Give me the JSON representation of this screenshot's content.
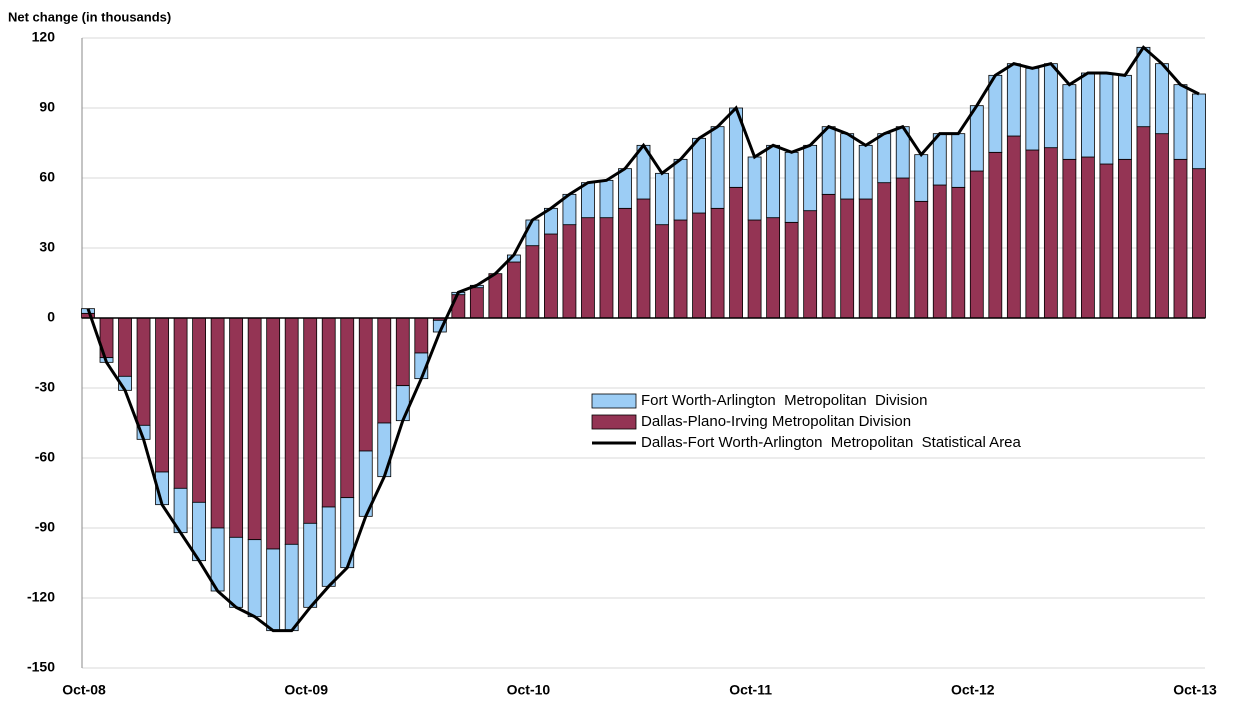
{
  "chart_data": {
    "type": "bar",
    "stacked": true,
    "y_label": "Net change (in thousands)",
    "categories": [
      "Oct-08",
      null,
      null,
      null,
      null,
      null,
      null,
      null,
      null,
      null,
      null,
      null,
      "Oct-09",
      null,
      null,
      null,
      null,
      null,
      null,
      null,
      null,
      null,
      null,
      null,
      "Oct-10",
      null,
      null,
      null,
      null,
      null,
      null,
      null,
      null,
      null,
      null,
      null,
      "Oct-11",
      null,
      null,
      null,
      null,
      null,
      null,
      null,
      null,
      null,
      null,
      null,
      "Oct-12",
      null,
      null,
      null,
      null,
      null,
      null,
      null,
      null,
      null,
      null,
      null,
      "Oct-13"
    ],
    "series": [
      {
        "name": "Fort Worth-Arlington  Metropolitan  Division",
        "type": "bar",
        "color": "#9ccdf5",
        "values": [
          2,
          -2,
          -6,
          -6,
          -14,
          -19,
          -25,
          -27,
          -30,
          -33,
          -35,
          -37,
          -36,
          -34,
          -30,
          -28,
          -23,
          -15,
          -11,
          -5,
          1,
          1,
          0,
          3,
          11,
          11,
          13,
          15,
          16,
          17,
          23,
          22,
          26,
          32,
          35,
          34,
          27,
          31,
          30,
          28,
          29,
          28,
          23,
          21,
          22,
          20,
          22,
          23,
          28,
          33,
          31,
          35,
          36,
          32,
          36,
          39,
          36,
          34,
          30,
          32,
          32
        ]
      },
      {
        "name": "Dallas-Plano-Irving Metropolitan Division",
        "type": "bar",
        "color": "#943454",
        "values": [
          2,
          -17,
          -25,
          -46,
          -66,
          -73,
          -79,
          -90,
          -94,
          -95,
          -99,
          -97,
          -88,
          -81,
          -77,
          -57,
          -45,
          -29,
          -15,
          -1,
          10,
          13,
          19,
          24,
          31,
          36,
          40,
          43,
          43,
          47,
          51,
          40,
          42,
          45,
          47,
          56,
          42,
          43,
          41,
          46,
          53,
          51,
          51,
          58,
          60,
          50,
          57,
          56,
          63,
          71,
          78,
          72,
          73,
          68,
          69,
          66,
          68,
          82,
          79,
          68,
          64
        ]
      },
      {
        "name": "Dallas-Fort Worth-Arlington  Metropolitan  Statistical Area",
        "type": "line",
        "color": "#000000",
        "values": [
          4,
          -19,
          -31,
          -52,
          -80,
          -92,
          -104,
          -117,
          -124,
          -128,
          -134,
          -134,
          -124,
          -115,
          -107,
          -85,
          -68,
          -44,
          -26,
          -6,
          11,
          14,
          19,
          27,
          42,
          47,
          53,
          58,
          59,
          64,
          74,
          62,
          68,
          77,
          82,
          90,
          69,
          74,
          71,
          74,
          82,
          79,
          74,
          79,
          82,
          70,
          79,
          79,
          91,
          104,
          109,
          107,
          109,
          100,
          105,
          105,
          104,
          116,
          109,
          100,
          96
        ]
      }
    ],
    "ylim": [
      -150,
      120
    ],
    "yticks": [
      -150,
      -120,
      -90,
      -60,
      -30,
      0,
      30,
      60,
      90,
      120
    ],
    "grid": true
  }
}
